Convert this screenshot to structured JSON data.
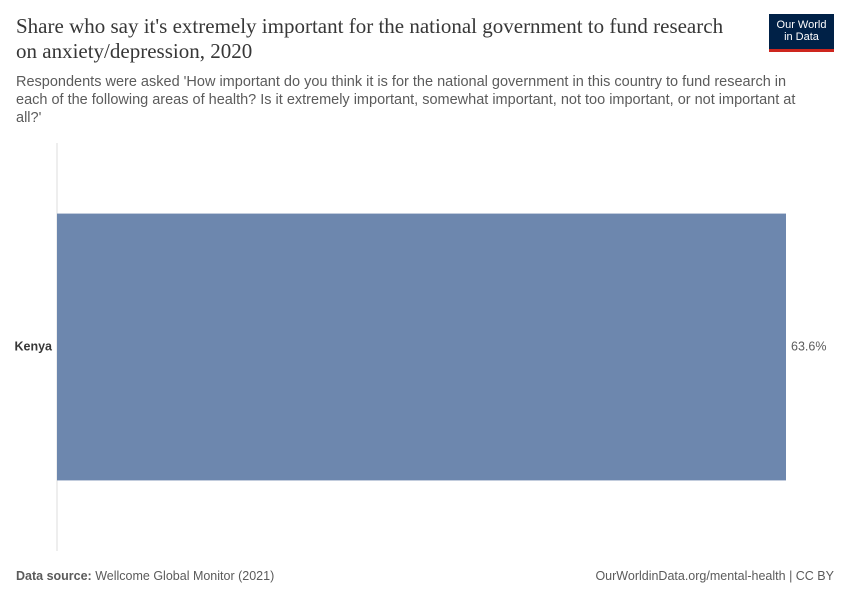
{
  "chart_data": {
    "type": "bar",
    "orientation": "horizontal",
    "title": "Share who say it's extremely important for the national government to fund research on anxiety/depression, 2020",
    "subtitle": "Respondents were asked 'How important do you think it is for the national government in this country to fund research in each of the following areas of health? Is it extremely important, somewhat important, not too important, or not important at all?'",
    "categories": [
      "Kenya"
    ],
    "values": [
      63.6
    ],
    "value_labels": [
      "63.6%"
    ],
    "color": "#6d87ae",
    "source_label": "Data source:",
    "source": "Wellcome Global Monitor (2021)",
    "url_license": "OurWorldinData.org/mental-health | CC BY",
    "logo": [
      "Our World",
      "in Data"
    ]
  }
}
